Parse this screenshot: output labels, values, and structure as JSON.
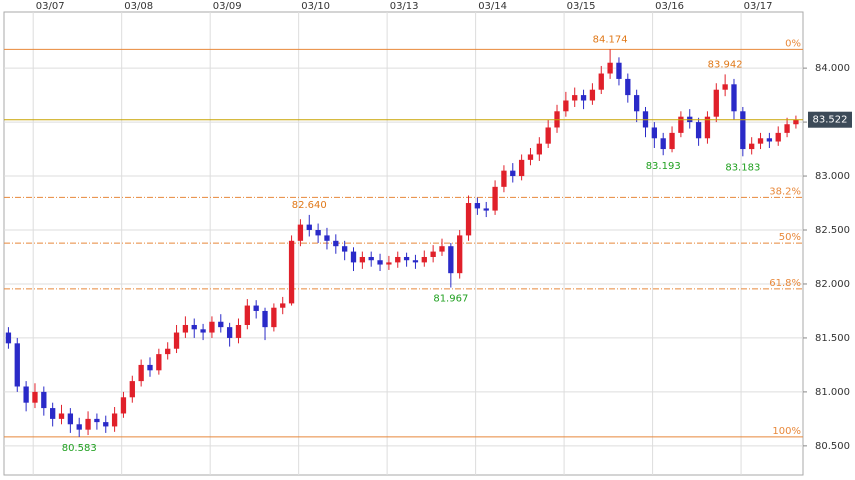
{
  "chart_data": {
    "type": "candlestick",
    "xticks": [
      {
        "value": 2.8,
        "label": "03/07"
      },
      {
        "value": 12.8,
        "label": "03/08"
      },
      {
        "value": 22.8,
        "label": "03/09"
      },
      {
        "value": 32.8,
        "label": "03/10"
      },
      {
        "value": 42.8,
        "label": "03/13"
      },
      {
        "value": 52.8,
        "label": "03/14"
      },
      {
        "value": 62.8,
        "label": "03/15"
      },
      {
        "value": 72.8,
        "label": "03/16"
      },
      {
        "value": 82.8,
        "label": "03/17"
      }
    ],
    "xlim": [
      -0.5,
      89.8
    ],
    "ylim": [
      80.23,
      84.52
    ],
    "yticks": [
      {
        "value": 80.5,
        "label": "80.500"
      },
      {
        "value": 81,
        "label": "81.000"
      },
      {
        "value": 81.5,
        "label": "81.500"
      },
      {
        "value": 82,
        "label": "82.000"
      },
      {
        "value": 82.5,
        "label": "82.500"
      },
      {
        "value": 83,
        "label": "83.000"
      },
      {
        "value": 83.5,
        "label": "83.500"
      },
      {
        "value": 84,
        "label": "84.000"
      }
    ],
    "grid": true,
    "up_color": "#e0202a",
    "down_color": "#2a2ac8",
    "open": [
      81.55,
      81.45,
      81.05,
      80.9,
      81,
      80.85,
      80.75,
      80.8,
      80.7,
      80.65,
      80.75,
      80.72,
      80.68,
      80.8,
      80.95,
      81.1,
      81.25,
      81.2,
      81.35,
      81.4,
      81.55,
      81.62,
      81.58,
      81.55,
      81.65,
      81.6,
      81.5,
      81.62,
      81.8,
      81.75,
      81.6,
      81.78,
      81.82,
      82.4,
      82.55,
      82.5,
      82.45,
      82.4,
      82.35,
      82.3,
      82.2,
      82.25,
      82.22,
      82.18,
      82.2,
      82.25,
      82.22,
      82.2,
      82.25,
      82.3,
      82.35,
      82.1,
      82.45,
      82.75,
      82.7,
      82.68,
      82.9,
      83.05,
      83,
      83.15,
      83.2,
      83.3,
      83.45,
      83.6,
      83.7,
      83.75,
      83.7,
      83.8,
      83.95,
      84.05,
      83.9,
      83.75,
      83.6,
      83.45,
      83.35,
      83.25,
      83.4,
      83.55,
      83.5,
      83.35,
      83.55,
      83.8,
      83.85,
      83.6,
      83.25,
      83.3,
      83.35,
      83.32,
      83.4,
      83.48
    ],
    "high": [
      81.6,
      81.5,
      81.1,
      81.08,
      81.05,
      80.9,
      80.88,
      80.85,
      80.76,
      80.82,
      80.8,
      80.78,
      80.86,
      81,
      81.15,
      81.3,
      81.32,
      81.4,
      81.46,
      81.62,
      81.7,
      81.68,
      81.63,
      81.7,
      81.72,
      81.64,
      81.68,
      81.86,
      81.85,
      81.78,
      81.82,
      81.88,
      82.45,
      82.6,
      82.64,
      82.56,
      82.52,
      82.46,
      82.4,
      82.34,
      82.3,
      82.3,
      82.28,
      82.26,
      82.3,
      82.29,
      82.27,
      82.31,
      82.36,
      82.42,
      82.38,
      82.5,
      82.82,
      82.8,
      82.76,
      82.96,
      83.1,
      83.12,
      83.2,
      83.26,
      83.36,
      83.52,
      83.66,
      83.78,
      83.82,
      83.8,
      83.86,
      84.02,
      84.174,
      84.1,
      83.95,
      83.8,
      83.64,
      83.5,
      83.4,
      83.46,
      83.6,
      83.62,
      83.54,
      83.6,
      83.86,
      83.942,
      83.9,
      83.64,
      83.36,
      83.4,
      83.4,
      83.46,
      83.54,
      83.56
    ],
    "low": [
      81.4,
      81,
      80.82,
      80.85,
      80.78,
      80.68,
      80.7,
      80.62,
      80.583,
      80.6,
      80.65,
      80.62,
      80.63,
      80.76,
      80.9,
      81.05,
      81.14,
      81.16,
      81.3,
      81.36,
      81.5,
      81.5,
      81.48,
      81.5,
      81.55,
      81.42,
      81.45,
      81.58,
      81.68,
      81.48,
      81.56,
      81.72,
      81.8,
      82.35,
      82.44,
      82.38,
      82.32,
      82.28,
      82.22,
      82.12,
      82.14,
      82.16,
      82.12,
      82.13,
      82.15,
      82.16,
      82.14,
      82.16,
      82.2,
      82.26,
      81.967,
      82.05,
      82.4,
      82.64,
      82.62,
      82.64,
      82.85,
      82.94,
      82.96,
      83.1,
      83.14,
      83.26,
      83.4,
      83.55,
      83.64,
      83.62,
      83.66,
      83.76,
      83.9,
      83.84,
      83.68,
      83.5,
      83.36,
      83.26,
      83.193,
      83.22,
      83.36,
      83.44,
      83.28,
      83.3,
      83.5,
      83.74,
      83.52,
      83.183,
      83.2,
      83.25,
      83.26,
      83.28,
      83.36,
      83.44
    ],
    "close": [
      81.45,
      81.05,
      80.9,
      81,
      80.85,
      80.75,
      80.8,
      80.7,
      80.65,
      80.75,
      80.72,
      80.68,
      80.8,
      80.95,
      81.1,
      81.25,
      81.2,
      81.35,
      81.4,
      81.55,
      81.62,
      81.58,
      81.55,
      81.65,
      81.6,
      81.5,
      81.62,
      81.8,
      81.75,
      81.6,
      81.78,
      81.82,
      82.4,
      82.55,
      82.5,
      82.45,
      82.4,
      82.35,
      82.3,
      82.2,
      82.25,
      82.22,
      82.18,
      82.2,
      82.25,
      82.22,
      82.2,
      82.25,
      82.3,
      82.35,
      82.1,
      82.45,
      82.75,
      82.7,
      82.68,
      82.9,
      83.05,
      83,
      83.15,
      83.2,
      83.3,
      83.45,
      83.6,
      83.7,
      83.75,
      83.7,
      83.8,
      83.95,
      84.05,
      83.9,
      83.75,
      83.6,
      83.45,
      83.35,
      83.25,
      83.4,
      83.55,
      83.5,
      83.35,
      83.55,
      83.8,
      83.85,
      83.6,
      83.25,
      83.3,
      83.35,
      83.32,
      83.4,
      83.48,
      83.522
    ],
    "levels": [
      {
        "value": 84.174,
        "label": "0%"
      },
      {
        "value": 82.802,
        "label": "38.2%"
      },
      {
        "value": 82.378,
        "label": "50%"
      },
      {
        "value": 81.955,
        "label": "61.8%"
      },
      {
        "value": 80.583,
        "label": "100%"
      }
    ],
    "level_color": "#e8883a",
    "last_price": {
      "value": 83.522,
      "label": "83.522"
    },
    "last_price_color": "#c8a400",
    "high_labels": [
      {
        "x": 68,
        "value": 84.174,
        "label": "84.174"
      },
      {
        "x": 81,
        "value": 83.942,
        "label": "83.942"
      },
      {
        "x": 34,
        "value": 82.64,
        "label": "82.640"
      }
    ],
    "low_labels": [
      {
        "x": 8,
        "value": 80.583,
        "label": "80.583"
      },
      {
        "x": 50,
        "value": 81.967,
        "label": "81.967"
      },
      {
        "x": 74,
        "value": 83.193,
        "label": "83.193"
      },
      {
        "x": 83,
        "value": 83.183,
        "label": "83.183"
      }
    ],
    "high_label_color": "#e07818",
    "low_label_color": "#20a020"
  }
}
